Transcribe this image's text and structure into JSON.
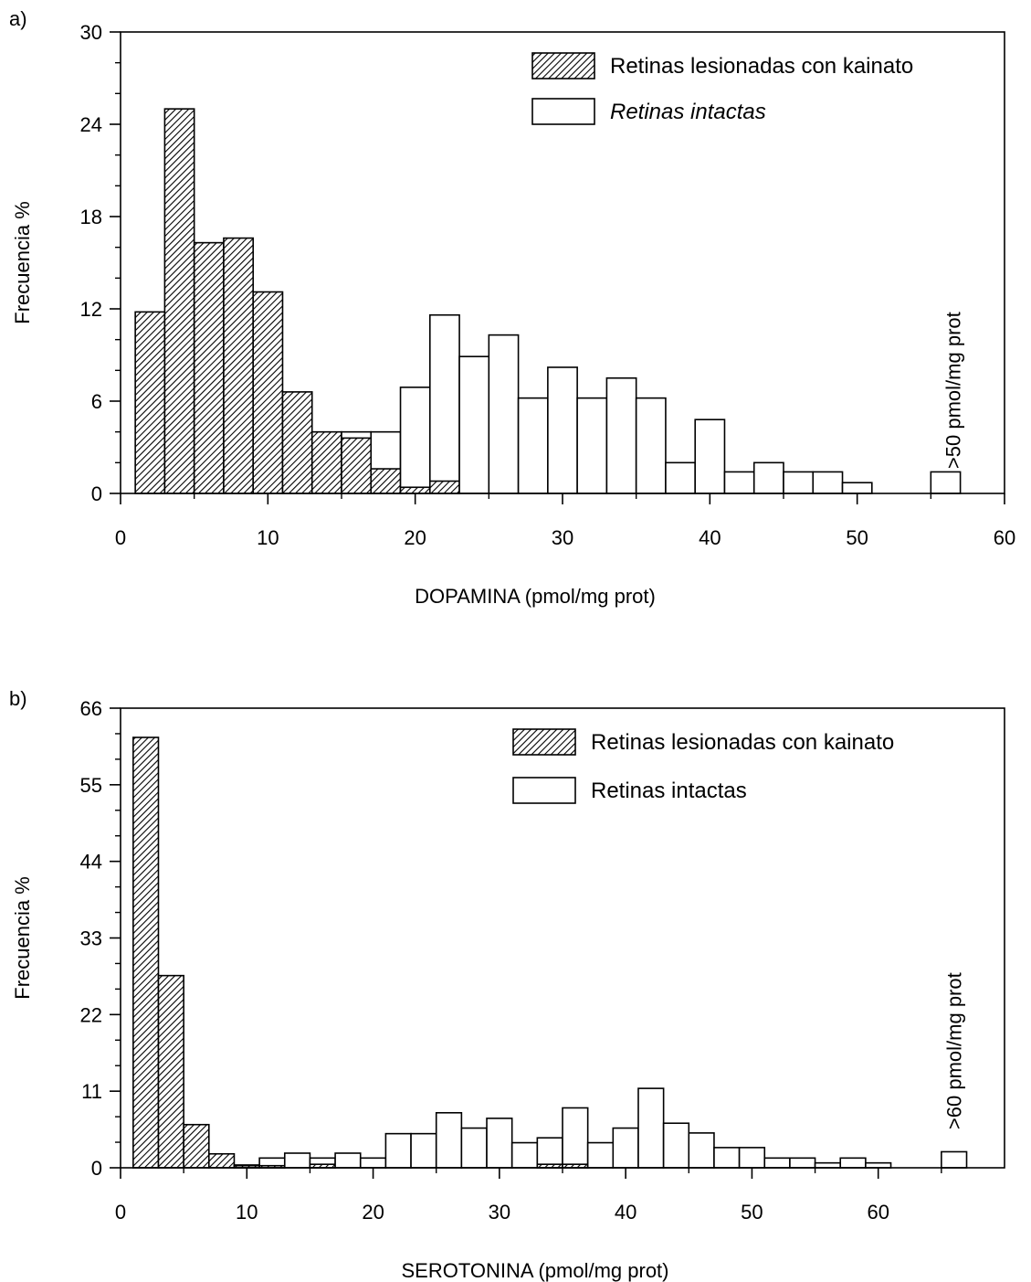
{
  "chart_data": [
    {
      "type": "bar",
      "panel_label": "a)",
      "xlabel": "DOPAMINA (pmol/mg prot)",
      "ylabel": "Frecuencia %",
      "xlim": [
        0,
        60
      ],
      "ylim": [
        0,
        30
      ],
      "xticks": [
        0,
        10,
        20,
        30,
        40,
        50,
        60
      ],
      "yticks": [
        0,
        6,
        12,
        18,
        24,
        30
      ],
      "bin_width": 2,
      "legend_position": "top-right",
      "annotation": {
        "text": ">50 pmol/mg prot",
        "x": 56.5,
        "y": 1.6
      },
      "series": [
        {
          "name": "Retinas lesionadas con kainato",
          "style": "hatched",
          "bins": [
            {
              "x": 2,
              "y": 11.8
            },
            {
              "x": 4,
              "y": 25
            },
            {
              "x": 6,
              "y": 16.3
            },
            {
              "x": 8,
              "y": 16.6
            },
            {
              "x": 10,
              "y": 13.1
            },
            {
              "x": 12,
              "y": 6.6
            },
            {
              "x": 14,
              "y": 4.0
            },
            {
              "x": 16,
              "y": 3.6
            },
            {
              "x": 18,
              "y": 1.6
            },
            {
              "x": 20,
              "y": 0.4
            },
            {
              "x": 22,
              "y": 0.8
            }
          ]
        },
        {
          "name": "Retinas intactas",
          "style": "open",
          "bins": [
            {
              "x": 16,
              "y": 4.0
            },
            {
              "x": 18,
              "y": 4.0
            },
            {
              "x": 20,
              "y": 6.9
            },
            {
              "x": 22,
              "y": 11.6
            },
            {
              "x": 24,
              "y": 8.9
            },
            {
              "x": 26,
              "y": 10.3
            },
            {
              "x": 28,
              "y": 6.2
            },
            {
              "x": 30,
              "y": 8.2
            },
            {
              "x": 32,
              "y": 6.2
            },
            {
              "x": 34,
              "y": 7.5
            },
            {
              "x": 36,
              "y": 6.2
            },
            {
              "x": 38,
              "y": 2.0
            },
            {
              "x": 40,
              "y": 4.8
            },
            {
              "x": 42,
              "y": 1.4
            },
            {
              "x": 44,
              "y": 2.0
            },
            {
              "x": 46,
              "y": 1.4
            },
            {
              "x": 48,
              "y": 1.4
            },
            {
              "x": 50,
              "y": 0.7
            },
            {
              "x": 56,
              "y": 1.4
            }
          ]
        }
      ]
    },
    {
      "type": "bar",
      "panel_label": "b)",
      "xlabel": "SEROTONINA (pmol/mg prot)",
      "ylabel": "Frecuencia %",
      "xlim": [
        0,
        70
      ],
      "ylim": [
        0,
        66
      ],
      "xticks": [
        0,
        10,
        20,
        30,
        40,
        50,
        60
      ],
      "yticks": [
        0,
        11,
        22,
        33,
        44,
        55,
        66
      ],
      "bin_width": 2,
      "legend_position": "top-right",
      "annotation": {
        "text": ">60 pmol/mg prot",
        "x": 66,
        "y": 5.5
      },
      "series": [
        {
          "name": "Retinas lesionadas con kainato",
          "style": "hatched",
          "bins": [
            {
              "x": 2,
              "y": 61.8
            },
            {
              "x": 4,
              "y": 27.6
            },
            {
              "x": 6,
              "y": 6.2
            },
            {
              "x": 8,
              "y": 2.0
            },
            {
              "x": 10,
              "y": 0.3
            },
            {
              "x": 12,
              "y": 0.3
            },
            {
              "x": 16,
              "y": 0.5
            },
            {
              "x": 34,
              "y": 0.5
            },
            {
              "x": 36,
              "y": 0.5
            }
          ]
        },
        {
          "name": "Retinas intactas",
          "style": "open",
          "bins": [
            {
              "x": 10,
              "y": 0.4
            },
            {
              "x": 12,
              "y": 1.4
            },
            {
              "x": 14,
              "y": 2.1
            },
            {
              "x": 16,
              "y": 1.4
            },
            {
              "x": 18,
              "y": 2.1
            },
            {
              "x": 20,
              "y": 1.4
            },
            {
              "x": 22,
              "y": 4.9
            },
            {
              "x": 24,
              "y": 4.9
            },
            {
              "x": 26,
              "y": 7.9
            },
            {
              "x": 28,
              "y": 5.7
            },
            {
              "x": 30,
              "y": 7.1
            },
            {
              "x": 32,
              "y": 3.6
            },
            {
              "x": 34,
              "y": 4.3
            },
            {
              "x": 36,
              "y": 8.6
            },
            {
              "x": 38,
              "y": 3.6
            },
            {
              "x": 40,
              "y": 5.7
            },
            {
              "x": 42,
              "y": 11.4
            },
            {
              "x": 44,
              "y": 6.4
            },
            {
              "x": 46,
              "y": 5.0
            },
            {
              "x": 48,
              "y": 2.9
            },
            {
              "x": 50,
              "y": 2.9
            },
            {
              "x": 52,
              "y": 1.4
            },
            {
              "x": 54,
              "y": 1.4
            },
            {
              "x": 56,
              "y": 0.7
            },
            {
              "x": 58,
              "y": 1.4
            },
            {
              "x": 60,
              "y": 0.7
            },
            {
              "x": 66,
              "y": 2.3
            }
          ]
        }
      ]
    }
  ]
}
